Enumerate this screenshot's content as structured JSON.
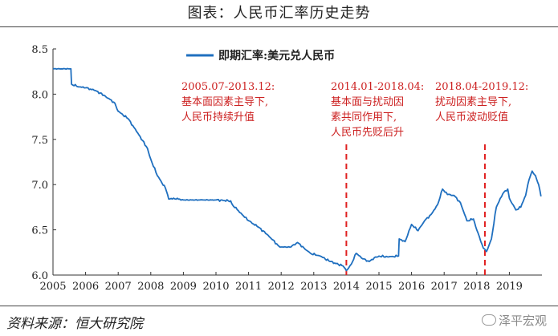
{
  "figure": {
    "title": "图表：人民币汇率历史走势",
    "source": "资料来源：恒大研究院",
    "watermark": "泽平宏观"
  },
  "chart_data": {
    "type": "line",
    "title": "",
    "xlabel": "",
    "ylabel": "",
    "xlim": [
      2005,
      2020
    ],
    "ylim": [
      6.0,
      8.5
    ],
    "x_ticks": [
      "2005",
      "2006",
      "2007",
      "2008",
      "2009",
      "2010",
      "2011",
      "2012",
      "2013",
      "2014",
      "2015",
      "2016",
      "2017",
      "2018",
      "2019"
    ],
    "y_ticks": [
      "6.0",
      "6.5",
      "7.0",
      "7.5",
      "8.0",
      "8.5"
    ],
    "grid": false,
    "legend": {
      "position": "top-center"
    },
    "series": [
      {
        "name": "即期汇率:美元兑人民币",
        "color": "#1f6fbf",
        "points": [
          [
            2005.0,
            8.28
          ],
          [
            2005.55,
            8.28
          ],
          [
            2005.57,
            8.11
          ],
          [
            2005.8,
            8.08
          ],
          [
            2006.0,
            8.07
          ],
          [
            2006.3,
            8.04
          ],
          [
            2006.6,
            7.98
          ],
          [
            2006.9,
            7.9
          ],
          [
            2007.0,
            7.81
          ],
          [
            2007.3,
            7.73
          ],
          [
            2007.6,
            7.57
          ],
          [
            2007.9,
            7.4
          ],
          [
            2008.0,
            7.28
          ],
          [
            2008.2,
            7.1
          ],
          [
            2008.45,
            6.96
          ],
          [
            2008.55,
            6.84
          ],
          [
            2008.7,
            6.85
          ],
          [
            2009.0,
            6.83
          ],
          [
            2009.5,
            6.83
          ],
          [
            2010.0,
            6.83
          ],
          [
            2010.45,
            6.82
          ],
          [
            2010.5,
            6.78
          ],
          [
            2010.8,
            6.67
          ],
          [
            2011.0,
            6.6
          ],
          [
            2011.3,
            6.53
          ],
          [
            2011.6,
            6.44
          ],
          [
            2011.9,
            6.33
          ],
          [
            2012.0,
            6.31
          ],
          [
            2012.3,
            6.31
          ],
          [
            2012.5,
            6.36
          ],
          [
            2012.7,
            6.3
          ],
          [
            2012.9,
            6.24
          ],
          [
            2013.2,
            6.21
          ],
          [
            2013.5,
            6.15
          ],
          [
            2013.9,
            6.1
          ],
          [
            2014.0,
            6.05
          ],
          [
            2014.15,
            6.12
          ],
          [
            2014.3,
            6.24
          ],
          [
            2014.5,
            6.18
          ],
          [
            2014.7,
            6.15
          ],
          [
            2014.9,
            6.2
          ],
          [
            2015.0,
            6.21
          ],
          [
            2015.3,
            6.2
          ],
          [
            2015.6,
            6.21
          ],
          [
            2015.62,
            6.4
          ],
          [
            2015.8,
            6.37
          ],
          [
            2016.0,
            6.56
          ],
          [
            2016.2,
            6.49
          ],
          [
            2016.4,
            6.6
          ],
          [
            2016.6,
            6.67
          ],
          [
            2016.8,
            6.78
          ],
          [
            2016.95,
            6.95
          ],
          [
            2017.1,
            6.89
          ],
          [
            2017.3,
            6.88
          ],
          [
            2017.5,
            6.8
          ],
          [
            2017.7,
            6.6
          ],
          [
            2017.9,
            6.62
          ],
          [
            2018.0,
            6.5
          ],
          [
            2018.2,
            6.3
          ],
          [
            2018.3,
            6.26
          ],
          [
            2018.45,
            6.4
          ],
          [
            2018.6,
            6.75
          ],
          [
            2018.8,
            6.9
          ],
          [
            2018.95,
            6.95
          ],
          [
            2019.0,
            6.85
          ],
          [
            2019.2,
            6.72
          ],
          [
            2019.35,
            6.75
          ],
          [
            2019.5,
            6.88
          ],
          [
            2019.6,
            7.05
          ],
          [
            2019.7,
            7.15
          ],
          [
            2019.8,
            7.1
          ],
          [
            2019.9,
            7.0
          ],
          [
            2019.97,
            6.87
          ]
        ]
      }
    ],
    "markers": [
      {
        "x": 2014.0,
        "color": "#e02020",
        "style": "dashed"
      },
      {
        "x": 2018.25,
        "color": "#e02020",
        "style": "dashed"
      }
    ],
    "annotations": [
      {
        "lines": [
          "2005.07-2013.12:",
          "基本面因素主导下,",
          "人民币持续升值"
        ],
        "color": "#cc2020"
      },
      {
        "lines": [
          "2014.01-2018.04:",
          "基本面与扰动因",
          "素共同作用下,",
          "人民币先贬后升"
        ],
        "color": "#cc2020"
      },
      {
        "lines": [
          "2018.04-2019.12:",
          "扰动因素主导下,",
          "人民币波动贬值"
        ],
        "color": "#cc2020"
      }
    ]
  }
}
